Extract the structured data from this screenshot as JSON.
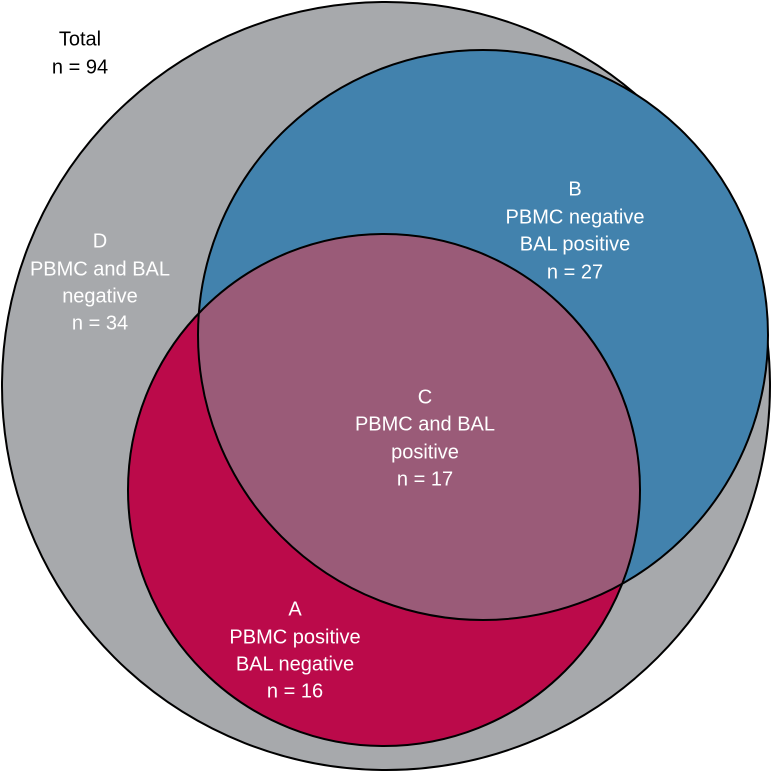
{
  "total": {
    "label": "Total",
    "n": "n = 94"
  },
  "regions": [
    {
      "letter": "D",
      "lines": [
        "PBMC and BAL",
        "negative"
      ],
      "n": "n = 34"
    },
    {
      "letter": "B",
      "lines": [
        "PBMC negative",
        "BAL positive"
      ],
      "n": "n = 27"
    },
    {
      "letter": "C",
      "lines": [
        "PBMC and BAL",
        "positive"
      ],
      "n": "n = 17"
    },
    {
      "letter": "A",
      "lines": [
        "PBMC positive",
        "BAL negative"
      ],
      "n": "n = 16"
    }
  ]
}
